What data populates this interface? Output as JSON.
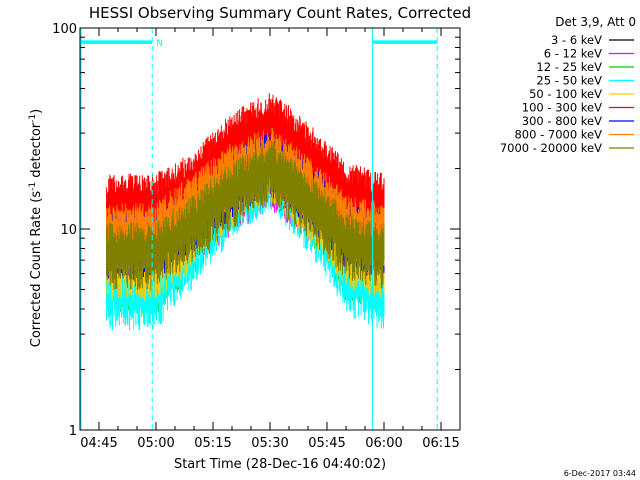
{
  "chart_data": {
    "type": "line",
    "title": "HESSI Observing Summary Count Rates, Corrected",
    "xlabel": "Start Time (28-Dec-16 04:40:02)",
    "ylabel": "Corrected Count Rate (s⁻¹ detector⁻¹)",
    "ylabel_main": "Corrected Count Rate (s",
    "ylabel_sup1": "-1",
    "ylabel_mid": " detector",
    "ylabel_sup2": "-1",
    "ylabel_end": ")",
    "yscale": "log",
    "ylim": [
      1,
      100
    ],
    "xlim": [
      "04:40",
      "06:20"
    ],
    "x_ticks": [
      "04:45",
      "05:00",
      "05:15",
      "05:30",
      "05:45",
      "06:00",
      "06:15"
    ],
    "y_ticks": [
      "1",
      "10",
      "100"
    ],
    "legend_header": "Det 3,9, Att 0",
    "legend_position": "right",
    "footer_date": "6-Dec-2017 03:44",
    "night_label": "N",
    "data_window": [
      "04:47",
      "06:00"
    ],
    "event_markers": [
      {
        "time": "04:59",
        "style": "dashed"
      },
      {
        "time": "05:57",
        "style": "solid"
      },
      {
        "time": "06:14",
        "style": "dashed"
      }
    ],
    "bars": [
      {
        "start": "04:40",
        "end": "04:59",
        "level": 85
      },
      {
        "start": "05:57",
        "end": "06:14",
        "level": 85
      }
    ],
    "series": [
      {
        "name": "3 - 6 keV",
        "color": "#000000",
        "x": [
          "04:47",
          "05:00",
          "05:10",
          "05:20",
          "05:30",
          "05:40",
          "05:50",
          "06:00"
        ],
        "values": [
          11,
          11,
          13,
          18,
          22,
          17,
          12,
          11
        ]
      },
      {
        "name": "6 - 12 keV",
        "color": "#ff00ff",
        "x": [
          "04:47",
          "05:00",
          "05:10",
          "05:20",
          "05:30",
          "05:40",
          "05:50",
          "06:00"
        ],
        "values": [
          8,
          8,
          10,
          15,
          20,
          14,
          9,
          8
        ]
      },
      {
        "name": "12 - 25 keV",
        "color": "#00cc00",
        "x": [
          "04:47",
          "05:00",
          "05:10",
          "05:20",
          "05:30",
          "05:40",
          "05:50",
          "06:00"
        ],
        "values": [
          6,
          6,
          9,
          16,
          24,
          14,
          7,
          6
        ]
      },
      {
        "name": "25 - 50 keV",
        "color": "#00ffff",
        "x": [
          "04:47",
          "05:00",
          "05:10",
          "05:20",
          "05:30",
          "05:40",
          "05:50",
          "06:00"
        ],
        "values": [
          5,
          5,
          8,
          14,
          20,
          12,
          6,
          5
        ]
      },
      {
        "name": "50 - 100 keV",
        "color": "#ffcc00",
        "x": [
          "04:47",
          "05:00",
          "05:10",
          "05:20",
          "05:30",
          "05:40",
          "05:50",
          "06:00"
        ],
        "values": [
          7,
          7,
          10,
          16,
          22,
          14,
          8,
          7
        ]
      },
      {
        "name": "100 - 300 keV",
        "color": "#ff0000",
        "x": [
          "04:47",
          "05:00",
          "05:10",
          "05:20",
          "05:30",
          "05:40",
          "05:50",
          "06:00"
        ],
        "values": [
          14,
          14,
          18,
          28,
          36,
          25,
          16,
          14
        ]
      },
      {
        "name": "300 - 800 keV",
        "color": "#0000ff",
        "x": [
          "04:47",
          "05:00",
          "05:10",
          "05:20",
          "05:30",
          "05:40",
          "05:50",
          "06:00"
        ],
        "values": [
          9,
          9,
          12,
          18,
          23,
          16,
          10,
          9
        ]
      },
      {
        "name": "800 - 7000 keV",
        "color": "#ff8000",
        "x": [
          "04:47",
          "05:00",
          "05:10",
          "05:20",
          "05:30",
          "05:40",
          "05:50",
          "06:00"
        ],
        "values": [
          10,
          10,
          14,
          20,
          24,
          17,
          11,
          10
        ]
      },
      {
        "name": "7000 - 20000 keV",
        "color": "#808000",
        "x": [
          "04:47",
          "05:00",
          "05:10",
          "05:20",
          "05:30",
          "05:40",
          "05:50",
          "06:00"
        ],
        "values": [
          8,
          8,
          11,
          16,
          21,
          14,
          9,
          8
        ]
      }
    ]
  }
}
